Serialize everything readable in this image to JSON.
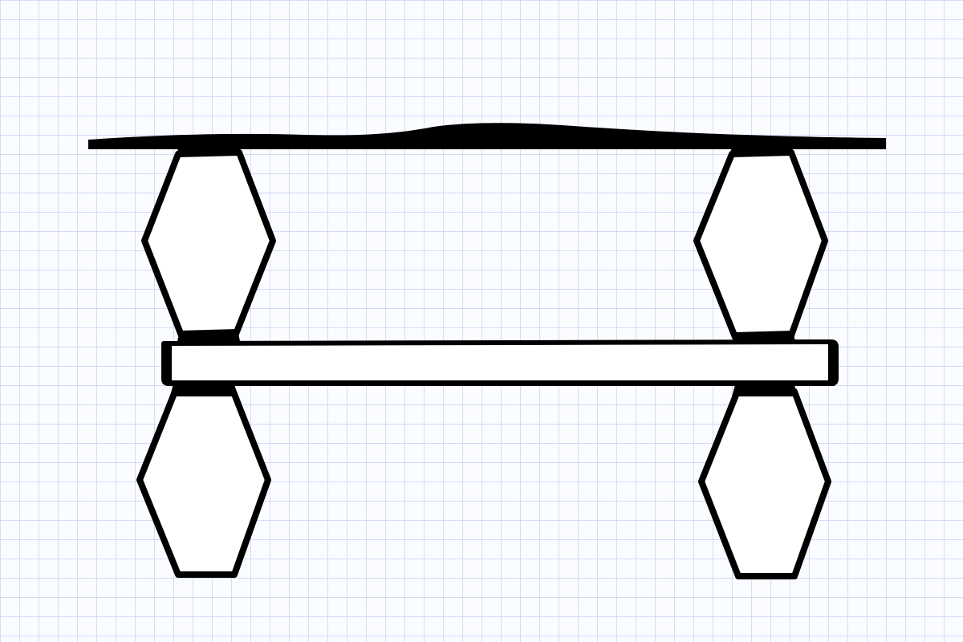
{
  "colors": {
    "paper": "#fbfcff",
    "grid_line": "#b9c8f2",
    "ink": "#000000",
    "shape_fill": "#ffffff"
  },
  "diagram": {
    "kind": "hand-drawn sketch on graph paper",
    "elements": [
      "top-beam",
      "upper-left-hexagon",
      "upper-right-hexagon",
      "middle-bar",
      "lower-left-hexagon",
      "lower-right-hexagon"
    ]
  }
}
